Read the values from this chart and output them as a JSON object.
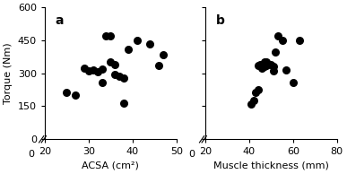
{
  "panel_a": {
    "x": [
      25,
      27,
      29,
      30,
      31,
      32,
      33,
      33,
      34,
      35,
      35,
      36,
      36,
      37,
      38,
      38,
      39,
      41,
      44,
      46,
      47
    ],
    "y": [
      215,
      200,
      325,
      310,
      315,
      305,
      320,
      260,
      470,
      470,
      350,
      340,
      295,
      285,
      280,
      165,
      410,
      450,
      435,
      335,
      385
    ],
    "xlabel": "ACSA (cm²)",
    "ylabel": "Torque (Nm)",
    "label": "a",
    "xlim": [
      20,
      50
    ],
    "ylim": [
      0,
      600
    ],
    "xticks": [
      20,
      30,
      40,
      50
    ],
    "yticks": [
      0,
      150,
      300,
      450,
      600
    ]
  },
  "panel_b": {
    "x": [
      41,
      42,
      43,
      44,
      44,
      45,
      46,
      47,
      47,
      48,
      48,
      50,
      51,
      51,
      52,
      53,
      55,
      57,
      60,
      63
    ],
    "y": [
      160,
      175,
      215,
      225,
      335,
      340,
      325,
      330,
      350,
      350,
      335,
      340,
      330,
      310,
      395,
      470,
      450,
      315,
      260,
      450
    ],
    "xlabel": "Muscle thickness (mm)",
    "label": "b",
    "xlim": [
      20,
      80
    ],
    "ylim": [
      0,
      600
    ],
    "xticks": [
      20,
      40,
      60,
      80
    ],
    "yticks": [
      0,
      150,
      300,
      450,
      600
    ]
  },
  "dot_color": "#000000",
  "dot_size": 30,
  "axis_color": "#000000",
  "background_color": "#ffffff",
  "font_size": 8,
  "label_font_size": 8
}
